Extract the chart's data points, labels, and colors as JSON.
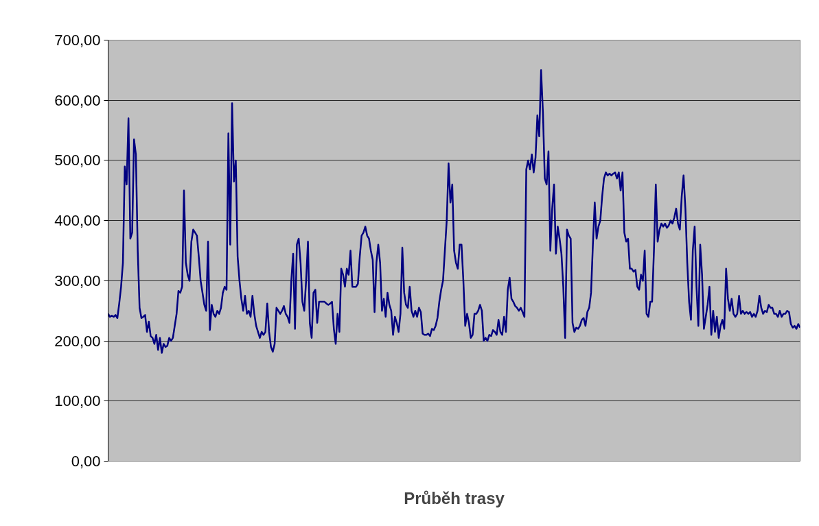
{
  "chart_data": {
    "type": "line",
    "xlabel": "Průběh trasy",
    "categories": [
      null,
      null,
      null,
      null,
      null,
      null,
      null,
      null,
      null,
      null,
      null,
      null,
      null,
      null,
      null,
      null,
      null,
      null,
      null,
      null,
      null,
      null,
      null,
      null,
      null,
      null,
      null,
      null,
      null,
      null,
      null,
      null,
      null,
      null,
      null,
      null,
      null,
      null,
      null,
      null,
      null,
      null,
      null,
      null,
      null,
      null,
      null,
      null,
      null,
      null,
      null,
      null,
      null,
      null,
      null,
      null,
      null,
      null,
      null,
      null,
      null,
      null,
      null,
      null,
      null,
      null,
      null,
      null,
      null,
      null,
      null,
      null,
      null,
      null,
      null,
      null,
      null,
      null,
      null,
      null,
      null,
      null,
      null,
      null,
      null,
      null,
      null,
      null,
      null,
      null,
      null,
      null,
      null,
      null,
      null,
      null,
      null,
      null,
      null,
      null,
      null,
      null,
      null,
      null,
      null,
      null,
      null,
      null,
      null,
      null,
      null,
      null,
      null,
      null,
      null,
      null,
      null,
      null,
      null,
      null,
      null,
      null,
      null,
      null,
      null,
      null,
      null,
      null,
      null,
      null,
      null,
      null,
      null,
      null,
      null,
      null,
      null,
      null,
      null,
      null,
      null,
      null,
      null,
      null,
      null,
      null,
      null,
      null,
      null,
      null,
      null,
      null,
      null,
      null,
      null,
      null,
      null,
      null,
      null,
      null,
      null,
      null,
      null,
      null,
      null,
      null,
      null,
      null,
      null,
      null,
      null,
      null,
      null,
      null,
      null,
      null,
      null,
      null,
      null,
      null,
      null,
      null,
      null,
      null,
      null,
      null,
      null,
      null,
      null,
      null,
      null,
      null,
      null,
      null,
      null,
      null,
      null,
      null,
      null,
      null,
      null,
      null,
      null,
      null,
      null,
      null,
      null,
      null,
      null,
      null,
      null,
      null,
      null,
      null,
      null,
      null,
      null,
      null,
      null,
      null,
      null,
      null,
      null,
      null,
      null,
      null,
      null,
      null,
      null,
      null,
      null,
      null,
      null,
      null,
      null,
      null,
      null,
      null,
      null,
      null,
      null,
      null,
      null,
      null,
      null,
      null,
      null,
      null,
      null,
      null,
      null,
      null,
      null,
      null,
      null,
      null,
      null,
      null,
      null,
      null,
      null,
      null,
      null,
      null,
      null,
      null,
      null,
      null,
      null,
      null,
      null,
      null,
      null,
      null,
      null,
      null,
      null,
      null,
      null,
      null,
      null,
      null,
      null,
      null,
      null,
      null,
      null,
      null,
      null,
      null,
      null,
      null,
      null,
      null,
      null,
      null,
      null,
      null,
      null,
      null,
      null,
      null,
      null,
      null,
      null,
      null,
      null,
      null,
      null,
      null,
      null,
      null,
      null,
      null,
      null,
      null,
      null,
      null,
      null,
      null,
      null,
      null,
      null,
      null,
      null,
      null,
      null,
      null,
      null,
      null,
      null,
      null,
      null,
      null,
      null,
      null,
      null,
      null,
      null,
      null,
      null,
      null,
      null,
      null,
      null,
      null,
      null,
      null,
      null,
      null,
      null,
      null,
      null,
      null,
      null,
      null,
      null,
      null,
      null,
      null,
      null,
      null,
      null,
      null,
      null,
      null,
      null,
      null,
      null,
      null,
      null,
      null,
      null,
      null,
      null
    ],
    "series": [
      {
        "color": "#000080",
        "values": [
          245,
          240,
          242,
          240,
          243,
          238,
          262,
          290,
          330,
          490,
          460,
          570,
          370,
          380,
          535,
          510,
          350,
          255,
          238,
          240,
          243,
          215,
          232,
          208,
          205,
          195,
          210,
          185,
          205,
          180,
          195,
          190,
          192,
          205,
          200,
          205,
          225,
          245,
          283,
          280,
          290,
          450,
          330,
          310,
          300,
          365,
          385,
          380,
          375,
          340,
          300,
          280,
          260,
          250,
          365,
          218,
          260,
          245,
          240,
          250,
          245,
          255,
          280,
          290,
          285,
          545,
          360,
          595,
          465,
          500,
          340,
          300,
          270,
          250,
          275,
          245,
          250,
          240,
          275,
          245,
          225,
          215,
          205,
          215,
          210,
          215,
          262,
          215,
          190,
          182,
          195,
          255,
          250,
          245,
          250,
          258,
          245,
          240,
          230,
          300,
          345,
          220,
          360,
          370,
          330,
          265,
          250,
          300,
          365,
          230,
          205,
          280,
          285,
          230,
          265,
          265,
          265,
          265,
          262,
          260,
          262,
          265,
          220,
          195,
          245,
          215,
          320,
          310,
          290,
          320,
          310,
          350,
          290,
          290,
          290,
          295,
          340,
          375,
          380,
          390,
          375,
          370,
          350,
          335,
          248,
          330,
          360,
          330,
          250,
          270,
          240,
          280,
          260,
          250,
          210,
          240,
          230,
          215,
          245,
          355,
          280,
          260,
          255,
          290,
          250,
          240,
          250,
          240,
          255,
          248,
          212,
          210,
          210,
          212,
          208,
          220,
          218,
          225,
          238,
          265,
          285,
          300,
          350,
          400,
          495,
          430,
          460,
          350,
          330,
          320,
          360,
          360,
          300,
          225,
          245,
          230,
          205,
          210,
          245,
          245,
          250,
          260,
          250,
          200,
          205,
          200,
          210,
          208,
          218,
          215,
          210,
          235,
          215,
          210,
          240,
          215,
          285,
          305,
          270,
          265,
          258,
          255,
          250,
          255,
          248,
          240,
          485,
          500,
          485,
          510,
          480,
          505,
          575,
          540,
          650,
          580,
          470,
          460,
          515,
          350,
          420,
          460,
          345,
          390,
          370,
          345,
          290,
          205,
          385,
          375,
          370,
          230,
          215,
          222,
          220,
          225,
          235,
          238,
          225,
          248,
          255,
          280,
          360,
          430,
          370,
          390,
          400,
          440,
          470,
          480,
          475,
          478,
          475,
          478,
          480,
          470,
          480,
          450,
          480,
          380,
          365,
          370,
          320,
          320,
          315,
          318,
          290,
          285,
          310,
          300,
          350,
          245,
          240,
          265,
          265,
          350,
          460,
          365,
          385,
          395,
          390,
          395,
          388,
          392,
          400,
          395,
          405,
          420,
          395,
          385,
          440,
          475,
          420,
          330,
          265,
          235,
          350,
          390,
          290,
          225,
          360,
          310,
          220,
          240,
          260,
          290,
          210,
          250,
          215,
          240,
          205,
          225,
          235,
          220,
          320,
          270,
          250,
          270,
          245,
          240,
          245,
          275,
          245,
          250,
          245,
          248,
          245,
          248,
          240,
          245,
          240,
          250,
          275,
          255,
          245,
          250,
          248,
          260,
          255,
          255,
          245,
          245,
          240,
          250,
          240,
          245,
          245,
          250,
          248,
          228,
          222,
          225,
          220,
          228,
          222
        ]
      }
    ],
    "ylim": [
      0,
      700
    ],
    "yticks": [
      {
        "value": 0,
        "label": "0,00"
      },
      {
        "value": 100,
        "label": "100,00"
      },
      {
        "value": 200,
        "label": "200,00"
      },
      {
        "value": 300,
        "label": "300,00"
      },
      {
        "value": 400,
        "label": "400,00"
      },
      {
        "value": 500,
        "label": "500,00"
      },
      {
        "value": 600,
        "label": "600,00"
      },
      {
        "value": 700,
        "label": "700,00"
      }
    ],
    "grid": "y",
    "tick_labels": "y",
    "marker": "none",
    "line_style": "solid"
  }
}
